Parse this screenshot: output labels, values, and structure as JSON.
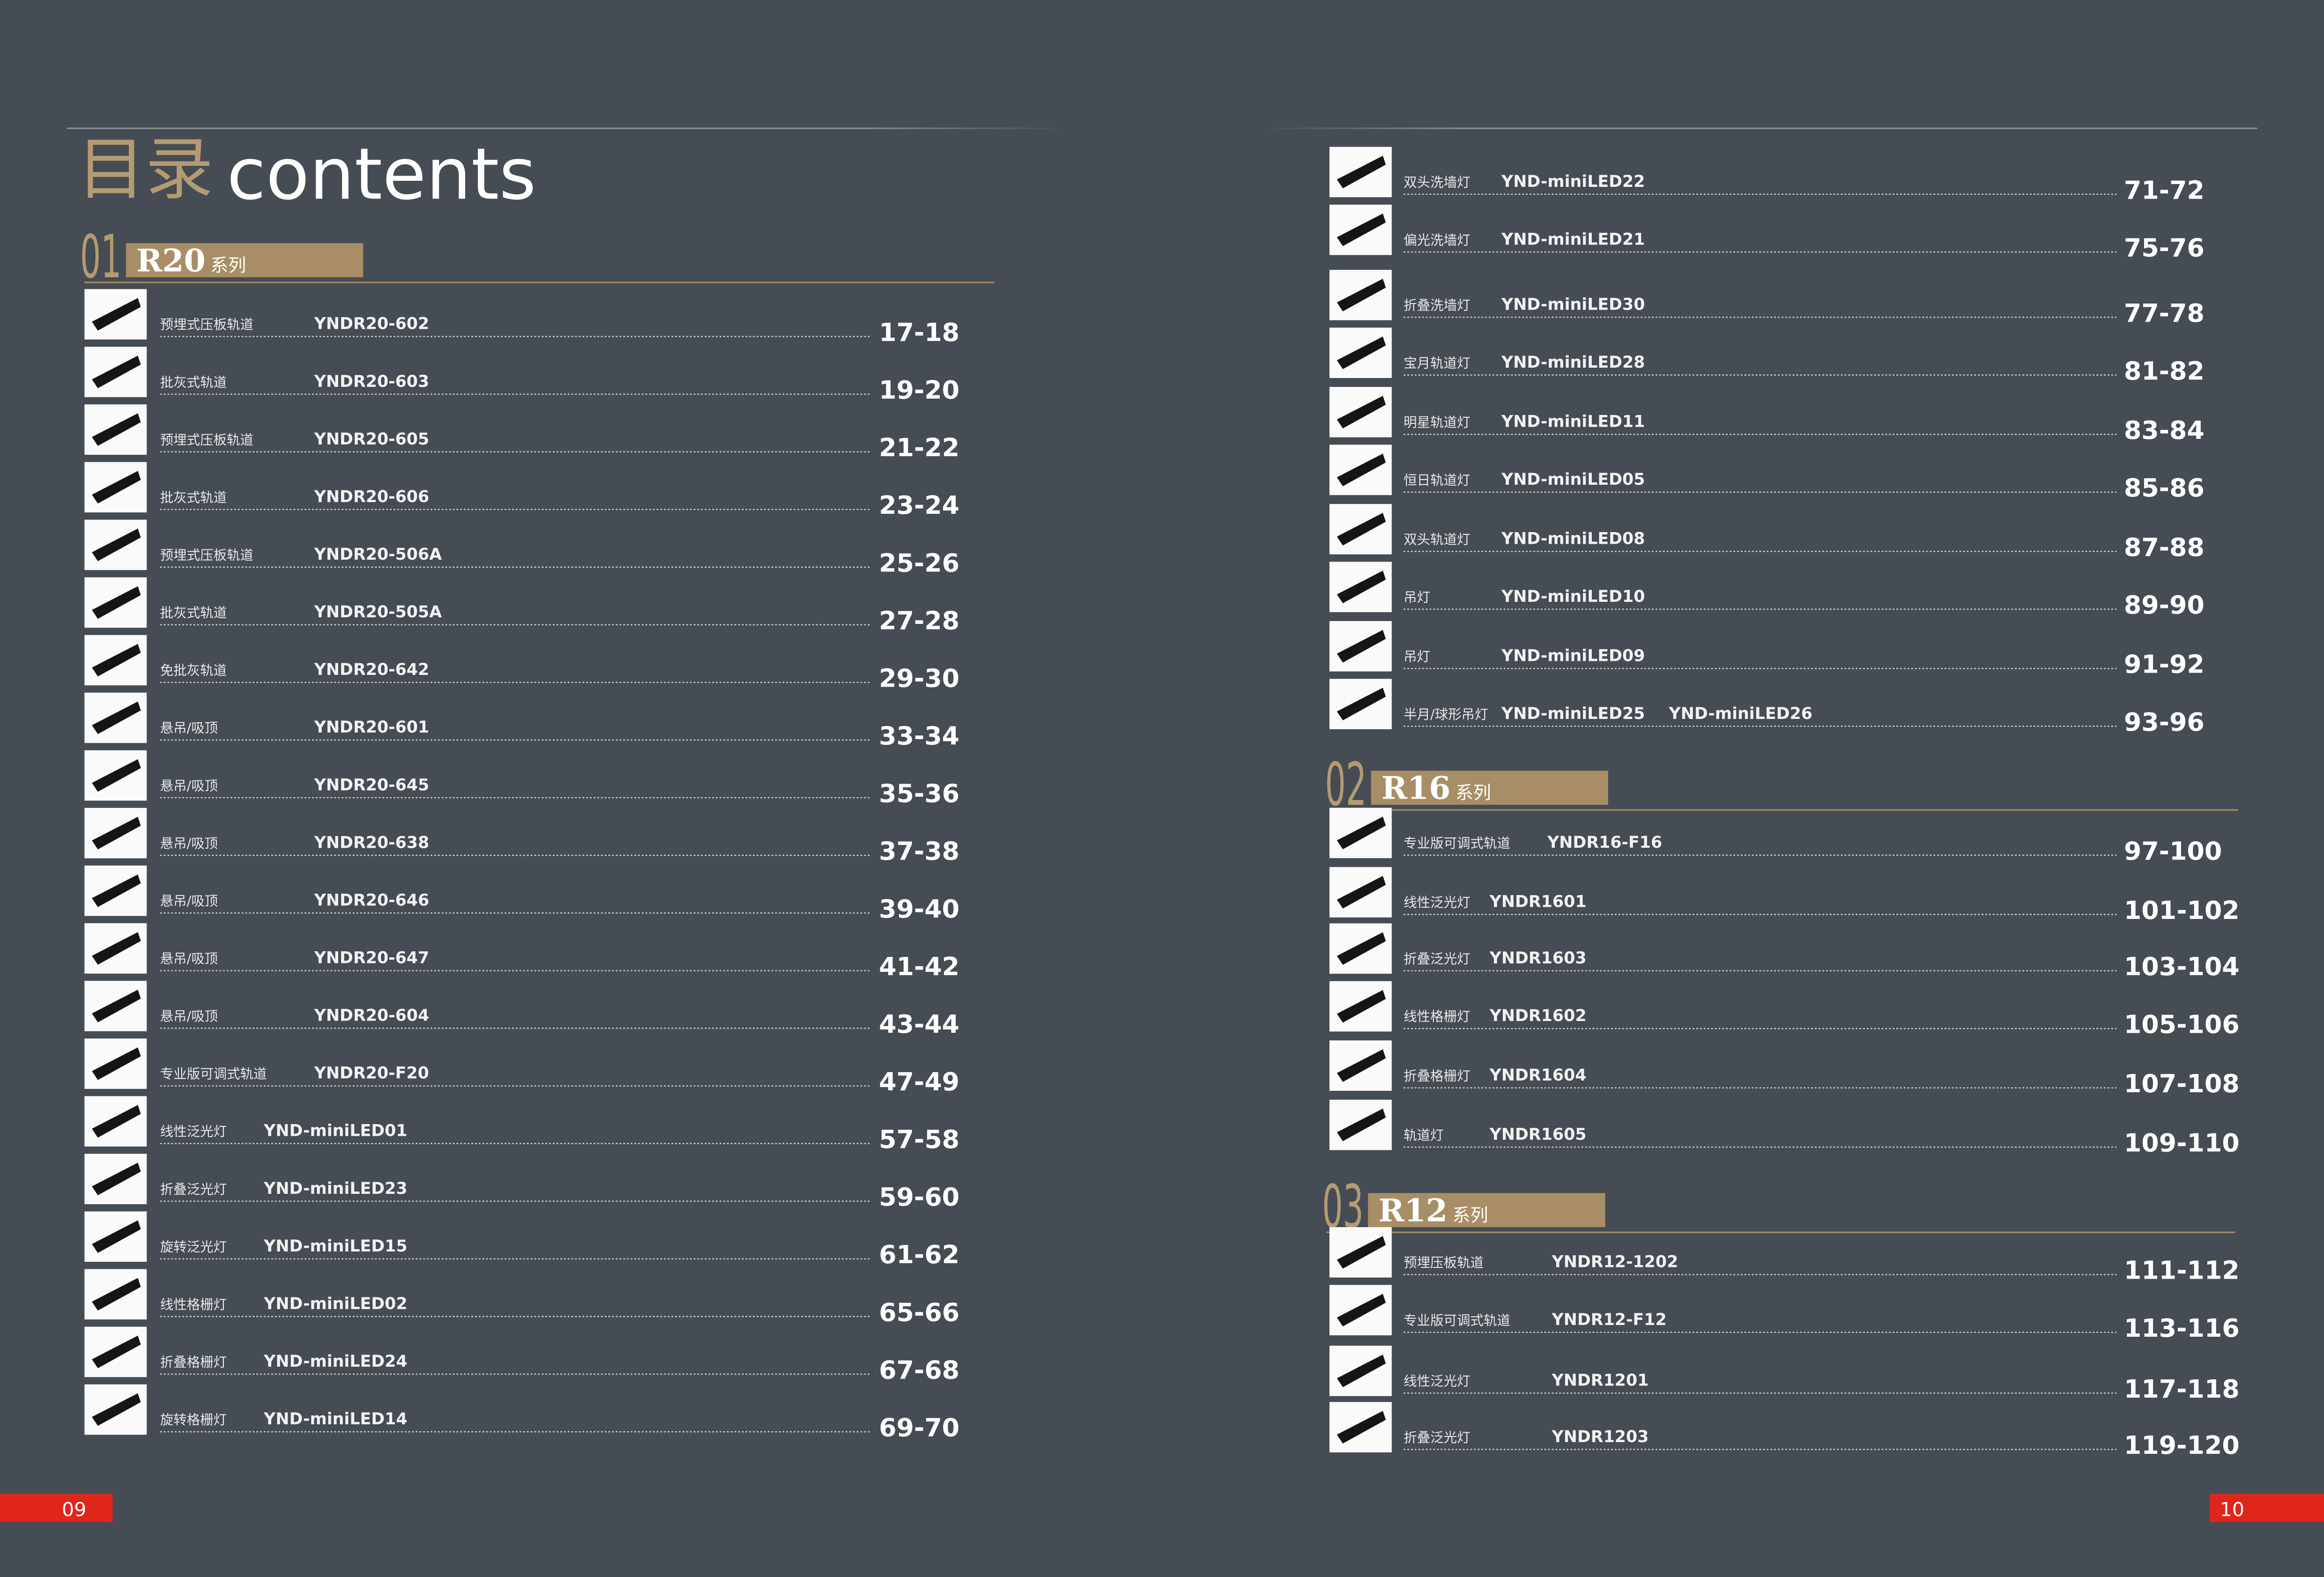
{
  "header": {
    "title_cn": "目录",
    "title_en": "contents"
  },
  "sections": [
    {
      "number": "01",
      "name": "R20",
      "suffix": "系列",
      "entries": [
        {
          "label": "预埋式压板轨道",
          "models": [
            "YNDR20-602"
          ],
          "pages": "17-18"
        },
        {
          "label": "批灰式轨道",
          "models": [
            "YNDR20-603"
          ],
          "pages": "19-20"
        },
        {
          "label": "预埋式压板轨道",
          "models": [
            "YNDR20-605"
          ],
          "pages": "21-22"
        },
        {
          "label": "批灰式轨道",
          "models": [
            "YNDR20-606"
          ],
          "pages": "23-24"
        },
        {
          "label": "预埋式压板轨道",
          "models": [
            "YNDR20-506A"
          ],
          "pages": "25-26"
        },
        {
          "label": "批灰式轨道",
          "models": [
            "YNDR20-505A"
          ],
          "pages": "27-28"
        },
        {
          "label": "免批灰轨道",
          "models": [
            "YNDR20-642"
          ],
          "pages": "29-30"
        },
        {
          "label": "悬吊/吸顶",
          "models": [
            "YNDR20-601"
          ],
          "pages": "33-34"
        },
        {
          "label": "悬吊/吸顶",
          "models": [
            "YNDR20-645"
          ],
          "pages": "35-36"
        },
        {
          "label": "悬吊/吸顶",
          "models": [
            "YNDR20-638"
          ],
          "pages": "37-38"
        },
        {
          "label": "悬吊/吸顶",
          "models": [
            "YNDR20-646"
          ],
          "pages": "39-40"
        },
        {
          "label": "悬吊/吸顶",
          "models": [
            "YNDR20-647"
          ],
          "pages": "41-42"
        },
        {
          "label": "悬吊/吸顶",
          "models": [
            "YNDR20-604"
          ],
          "pages": "43-44"
        },
        {
          "label": "专业版可调式轨道",
          "models": [
            "YNDR20-F20"
          ],
          "pages": "47-49"
        },
        {
          "label": "线性泛光灯",
          "models": [
            "YND-miniLED01"
          ],
          "pages": "57-58"
        },
        {
          "label": "折叠泛光灯",
          "models": [
            "YND-miniLED23"
          ],
          "pages": "59-60"
        },
        {
          "label": "旋转泛光灯",
          "models": [
            "YND-miniLED15"
          ],
          "pages": "61-62"
        },
        {
          "label": "线性格栅灯",
          "models": [
            "YND-miniLED02"
          ],
          "pages": "65-66"
        },
        {
          "label": "折叠格栅灯",
          "models": [
            "YND-miniLED24"
          ],
          "pages": "67-68"
        },
        {
          "label": "旋转格栅灯",
          "models": [
            "YND-miniLED14"
          ],
          "pages": "69-70"
        },
        {
          "label": "双头洗墙灯",
          "models": [
            "YND-miniLED22"
          ],
          "pages": "71-72"
        },
        {
          "label": "偏光洗墙灯",
          "models": [
            "YND-miniLED21"
          ],
          "pages": "75-76"
        },
        {
          "label": "折叠洗墙灯",
          "models": [
            "YND-miniLED30"
          ],
          "pages": "77-78"
        },
        {
          "label": "宝月轨道灯",
          "models": [
            "YND-miniLED28"
          ],
          "pages": "81-82"
        },
        {
          "label": "明星轨道灯",
          "models": [
            "YND-miniLED11"
          ],
          "pages": "83-84"
        },
        {
          "label": "恒日轨道灯",
          "models": [
            "YND-miniLED05"
          ],
          "pages": "85-86"
        },
        {
          "label": "双头轨道灯",
          "models": [
            "YND-miniLED08"
          ],
          "pages": "87-88"
        },
        {
          "label": "吊灯",
          "models": [
            "YND-miniLED10"
          ],
          "pages": "89-90"
        },
        {
          "label": "吊灯",
          "models": [
            "YND-miniLED09"
          ],
          "pages": "91-92"
        },
        {
          "label": "半月/球形吊灯",
          "models": [
            "YND-miniLED25",
            "YND-miniLED26"
          ],
          "pages": "93-96"
        }
      ]
    },
    {
      "number": "02",
      "name": "R16",
      "suffix": "系列",
      "entries": [
        {
          "label": "专业版可调式轨道",
          "models": [
            "YNDR16-F16"
          ],
          "pages": "97-100"
        },
        {
          "label": "线性泛光灯",
          "models": [
            "YNDR1601"
          ],
          "pages": "101-102"
        },
        {
          "label": "折叠泛光灯",
          "models": [
            "YNDR1603"
          ],
          "pages": "103-104"
        },
        {
          "label": "线性格栅灯",
          "models": [
            "YNDR1602"
          ],
          "pages": "105-106"
        },
        {
          "label": "折叠格栅灯",
          "models": [
            "YNDR1604"
          ],
          "pages": "107-108"
        },
        {
          "label": "轨道灯",
          "models": [
            "YNDR1605"
          ],
          "pages": "109-110"
        }
      ]
    },
    {
      "number": "03",
      "name": "R12",
      "suffix": "系列",
      "entries": [
        {
          "label": "预埋压板轨道",
          "models": [
            "YNDR12-1202"
          ],
          "pages": "111-112"
        },
        {
          "label": "专业版可调式轨道",
          "models": [
            "YNDR12-F12"
          ],
          "pages": "113-116"
        },
        {
          "label": "线性泛光灯",
          "models": [
            "YNDR1201"
          ],
          "pages": "117-118"
        },
        {
          "label": "折叠泛光灯",
          "models": [
            "YNDR1203"
          ],
          "pages": "119-120"
        }
      ]
    }
  ],
  "footer": {
    "page_left": "09",
    "page_right": "10"
  }
}
